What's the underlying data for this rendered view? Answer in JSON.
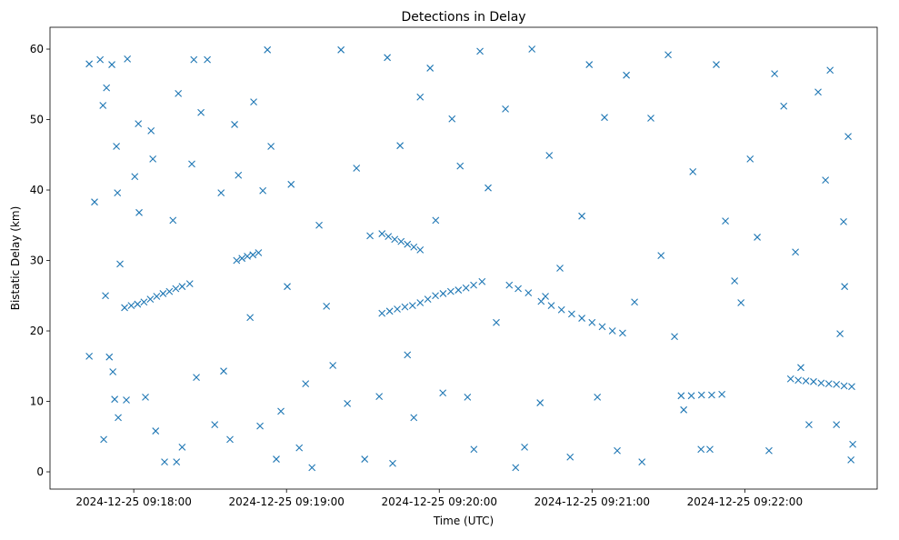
{
  "chart_data": {
    "type": "scatter",
    "title": "Detections in Delay",
    "xlabel": "Time (UTC)",
    "ylabel": "Bistatic Delay (km)",
    "x_unit": "seconds after 2024-12-25 09:17:00 UTC",
    "xlim": [
      27.1,
      352
    ],
    "ylim": [
      -2.45,
      63.1
    ],
    "grid": false,
    "marker": "x",
    "color": "#1f77b4",
    "xticks": [
      {
        "value": 60,
        "label": "2024-12-25 09:18:00"
      },
      {
        "value": 120,
        "label": "2024-12-25 09:19:00"
      },
      {
        "value": 180,
        "label": "2024-12-25 09:20:00"
      },
      {
        "value": 240,
        "label": "2024-12-25 09:21:00"
      },
      {
        "value": 300,
        "label": "2024-12-25 09:22:00"
      }
    ],
    "yticks": [
      {
        "value": 0,
        "label": "0"
      },
      {
        "value": 10,
        "label": "10"
      },
      {
        "value": 20,
        "label": "20"
      },
      {
        "value": 30,
        "label": "30"
      },
      {
        "value": 40,
        "label": "40"
      },
      {
        "value": 50,
        "label": "50"
      },
      {
        "value": 60,
        "label": "60"
      }
    ],
    "points": [
      [
        42.5,
        57.9
      ],
      [
        42.5,
        16.4
      ],
      [
        44.6,
        38.3
      ],
      [
        46.8,
        58.5
      ],
      [
        47.9,
        52
      ],
      [
        48.2,
        4.6
      ],
      [
        48.9,
        25
      ],
      [
        49.3,
        54.5
      ],
      [
        50.4,
        16.3
      ],
      [
        51.4,
        57.8
      ],
      [
        51.8,
        14.2
      ],
      [
        52.5,
        10.3
      ],
      [
        53.2,
        46.2
      ],
      [
        53.6,
        39.6
      ],
      [
        53.9,
        7.7
      ],
      [
        54.6,
        29.5
      ],
      [
        57.5,
        58.6
      ],
      [
        57.1,
        10.2
      ],
      [
        60.4,
        41.9
      ],
      [
        61.8,
        49.4
      ],
      [
        62.1,
        36.8
      ],
      [
        64.6,
        10.6
      ],
      [
        66.8,
        48.4
      ],
      [
        67.5,
        44.4
      ],
      [
        68.6,
        5.8
      ],
      [
        72.1,
        1.4
      ],
      [
        75.4,
        35.7
      ],
      [
        76.8,
        1.4
      ],
      [
        77.5,
        53.7
      ],
      [
        79,
        3.5
      ],
      [
        82.8,
        43.7
      ],
      [
        83.6,
        58.5
      ],
      [
        84.6,
        13.4
      ],
      [
        86.4,
        51
      ],
      [
        88.9,
        58.5
      ],
      [
        91.8,
        6.7
      ],
      [
        94.3,
        39.6
      ],
      [
        95.3,
        14.3
      ],
      [
        97.8,
        4.6
      ],
      [
        99.6,
        49.3
      ],
      [
        101.1,
        42.1
      ],
      [
        105.7,
        21.9
      ],
      [
        107.1,
        52.5
      ],
      [
        109.6,
        6.5
      ],
      [
        110.7,
        39.9
      ],
      [
        112.5,
        59.9
      ],
      [
        113.9,
        46.2
      ],
      [
        116,
        1.8
      ],
      [
        117.8,
        8.6
      ],
      [
        120.3,
        26.3
      ],
      [
        121.8,
        40.8
      ],
      [
        125,
        3.4
      ],
      [
        127.5,
        12.5
      ],
      [
        130,
        0.6
      ],
      [
        132.8,
        35
      ],
      [
        135.7,
        23.5
      ],
      [
        138.2,
        15.1
      ],
      [
        141.4,
        59.9
      ],
      [
        143.9,
        9.7
      ],
      [
        147.5,
        43.1
      ],
      [
        150.7,
        1.8
      ],
      [
        152.8,
        33.5
      ],
      [
        156.4,
        10.7
      ],
      [
        159.6,
        58.8
      ],
      [
        161.7,
        1.2
      ],
      [
        164.6,
        46.3
      ],
      [
        167.5,
        16.6
      ],
      [
        170,
        7.7
      ],
      [
        172.5,
        53.2
      ],
      [
        176.4,
        57.3
      ],
      [
        178.6,
        35.7
      ],
      [
        181.4,
        11.2
      ],
      [
        185,
        50.1
      ],
      [
        188.2,
        43.4
      ],
      [
        191.1,
        10.6
      ],
      [
        193.6,
        3.2
      ],
      [
        196,
        59.7
      ],
      [
        199.2,
        40.3
      ],
      [
        202.4,
        21.2
      ],
      [
        206,
        51.5
      ],
      [
        210,
        0.6
      ],
      [
        213.5,
        3.5
      ],
      [
        216.4,
        60
      ],
      [
        219.6,
        9.8
      ],
      [
        221.7,
        24.9
      ],
      [
        223.2,
        44.9
      ],
      [
        227.4,
        28.9
      ],
      [
        231.4,
        2.1
      ],
      [
        236,
        36.3
      ],
      [
        238.9,
        57.8
      ],
      [
        242.1,
        10.6
      ],
      [
        244.9,
        50.3
      ],
      [
        249.9,
        3
      ],
      [
        253.5,
        56.3
      ],
      [
        256.7,
        24.1
      ],
      [
        259.6,
        1.4
      ],
      [
        263.1,
        50.2
      ],
      [
        267.1,
        30.7
      ],
      [
        269.9,
        59.2
      ],
      [
        272.4,
        19.2
      ],
      [
        276,
        8.8
      ],
      [
        279.6,
        42.6
      ],
      [
        282.8,
        3.2
      ],
      [
        286.3,
        3.2
      ],
      [
        288.8,
        57.8
      ],
      [
        292.4,
        35.6
      ],
      [
        296,
        27.1
      ],
      [
        298.5,
        24
      ],
      [
        302.1,
        44.4
      ],
      [
        304.9,
        33.3
      ],
      [
        309.5,
        3
      ],
      [
        311.7,
        56.5
      ],
      [
        315.3,
        51.9
      ],
      [
        319.9,
        31.2
      ],
      [
        322,
        14.8
      ],
      [
        325.2,
        6.7
      ],
      [
        328.8,
        53.9
      ],
      [
        331.7,
        41.4
      ],
      [
        333.5,
        57
      ],
      [
        336,
        6.7
      ],
      [
        337.4,
        19.6
      ],
      [
        338.8,
        35.5
      ],
      [
        340.6,
        47.6
      ],
      [
        341.7,
        1.7
      ],
      [
        342.4,
        3.9
      ],
      [
        339.2,
        26.3
      ],
      [
        56.4,
        23.3
      ],
      [
        59,
        23.6
      ],
      [
        61.5,
        23.8
      ],
      [
        64,
        24.1
      ],
      [
        66.5,
        24.5
      ],
      [
        69,
        24.9
      ],
      [
        71.5,
        25.3
      ],
      [
        74,
        25.6
      ],
      [
        76.5,
        26
      ],
      [
        79,
        26.3
      ],
      [
        82,
        26.7
      ],
      [
        100.4,
        30
      ],
      [
        102.5,
        30.3
      ],
      [
        104.6,
        30.6
      ],
      [
        106.8,
        30.8
      ],
      [
        109,
        31.1
      ],
      [
        157.5,
        33.8
      ],
      [
        160,
        33.4
      ],
      [
        162.5,
        33
      ],
      [
        165,
        32.7
      ],
      [
        167.5,
        32.3
      ],
      [
        170,
        31.9
      ],
      [
        172.5,
        31.5
      ],
      [
        157.5,
        22.5
      ],
      [
        160.5,
        22.8
      ],
      [
        163.5,
        23.1
      ],
      [
        166.5,
        23.4
      ],
      [
        169.5,
        23.6
      ],
      [
        172.5,
        24
      ],
      [
        175.5,
        24.5
      ],
      [
        178.5,
        25
      ],
      [
        181.5,
        25.3
      ],
      [
        184.5,
        25.6
      ],
      [
        187.5,
        25.8
      ],
      [
        190.5,
        26.1
      ],
      [
        193.5,
        26.5
      ],
      [
        196.8,
        27
      ],
      [
        207.5,
        26.5
      ],
      [
        211,
        26
      ],
      [
        215,
        25.4
      ],
      [
        220,
        24.2
      ],
      [
        224,
        23.6
      ],
      [
        228,
        23
      ],
      [
        232,
        22.4
      ],
      [
        236,
        21.8
      ],
      [
        240,
        21.2
      ],
      [
        244,
        20.6
      ],
      [
        248,
        20
      ],
      [
        252,
        19.7
      ],
      [
        318,
        13.2
      ],
      [
        321,
        13
      ],
      [
        324,
        12.9
      ],
      [
        327,
        12.8
      ],
      [
        330,
        12.6
      ],
      [
        333,
        12.5
      ],
      [
        336,
        12.4
      ],
      [
        339,
        12.2
      ],
      [
        342,
        12.1
      ],
      [
        275,
        10.8
      ],
      [
        279,
        10.8
      ],
      [
        283,
        10.9
      ],
      [
        287,
        10.9
      ],
      [
        291,
        11
      ]
    ]
  }
}
